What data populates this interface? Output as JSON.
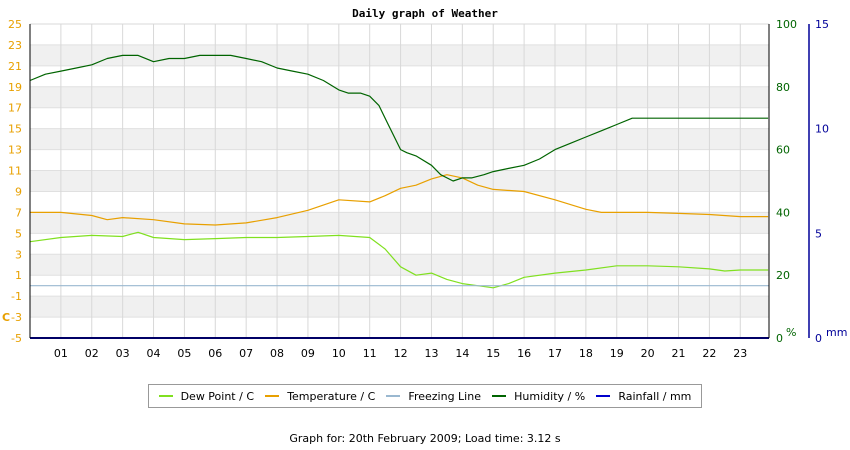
{
  "chart_data": {
    "type": "line",
    "title": "Daily graph of Weather",
    "x_tick_labels": [
      "01",
      "02",
      "03",
      "04",
      "05",
      "06",
      "07",
      "08",
      "09",
      "10",
      "11",
      "12",
      "13",
      "14",
      "15",
      "16",
      "17",
      "18",
      "19",
      "20",
      "21",
      "22",
      "23"
    ],
    "xlim": [
      0,
      23.93
    ],
    "left_axis": {
      "unit_label": "C",
      "ylim": [
        -5,
        25
      ],
      "ticks": [
        -5,
        -3,
        -1,
        1,
        3,
        5,
        7,
        9,
        11,
        13,
        15,
        17,
        19,
        21,
        23,
        25
      ],
      "color": "#E8A000"
    },
    "right_axis_1": {
      "unit_label": "%",
      "ylim": [
        0,
        100
      ],
      "ticks": [
        0,
        20,
        40,
        60,
        80,
        100
      ],
      "color": "#006400"
    },
    "right_axis_2": {
      "unit_label": "mm",
      "ylim": [
        0,
        15
      ],
      "ticks": [
        0,
        5,
        10,
        15
      ],
      "color": "#000099"
    },
    "grid": true,
    "legend_placement": "bottom",
    "series": [
      {
        "name": "Dew Point / C",
        "axis": "left",
        "color": "#80E020",
        "x": [
          0,
          1,
          2,
          3,
          3.5,
          4,
          5,
          6,
          7,
          8,
          9,
          10,
          11,
          11.5,
          12,
          12.5,
          13,
          13.5,
          14,
          14.5,
          15,
          15.5,
          16,
          17,
          18,
          19,
          20,
          21,
          22,
          22.5,
          23,
          23.9
        ],
        "y": [
          4.2,
          4.6,
          4.8,
          4.7,
          5.1,
          4.6,
          4.4,
          4.5,
          4.6,
          4.6,
          4.7,
          4.8,
          4.6,
          3.5,
          1.8,
          1.0,
          1.2,
          0.6,
          0.2,
          0.0,
          -0.2,
          0.2,
          0.8,
          1.2,
          1.5,
          1.9,
          1.9,
          1.8,
          1.6,
          1.4,
          1.5,
          1.5
        ]
      },
      {
        "name": "Temperature / C",
        "axis": "left",
        "color": "#E8A000",
        "x": [
          0,
          1,
          2,
          2.5,
          3,
          4,
          5,
          6,
          7,
          8,
          9,
          10,
          11,
          11.5,
          12,
          12.5,
          13,
          13.5,
          14,
          14.5,
          15,
          16,
          17,
          18,
          18.5,
          19,
          20,
          21,
          22,
          23,
          23.9
        ],
        "y": [
          7.0,
          7.0,
          6.7,
          6.3,
          6.5,
          6.3,
          5.9,
          5.8,
          6.0,
          6.5,
          7.2,
          8.2,
          8.0,
          8.6,
          9.3,
          9.6,
          10.2,
          10.6,
          10.3,
          9.6,
          9.2,
          9.0,
          8.2,
          7.3,
          7.0,
          7.0,
          7.0,
          6.9,
          6.8,
          6.6,
          6.6
        ]
      },
      {
        "name": "Freezing Line",
        "axis": "left",
        "color": "#9AB8D0",
        "x": [
          0,
          23.93
        ],
        "y": [
          0,
          0
        ]
      },
      {
        "name": "Humidity / %",
        "axis": "right_1",
        "color": "#006400",
        "x": [
          0,
          0.5,
          1,
          1.5,
          2,
          2.5,
          3,
          3.5,
          4,
          4.5,
          5,
          5.5,
          6,
          6.5,
          7,
          7.5,
          8,
          8.5,
          9,
          9.5,
          10,
          10.3,
          10.7,
          11,
          11.3,
          11.6,
          12,
          12.2,
          12.5,
          13,
          13.3,
          13.7,
          14,
          14.3,
          14.7,
          15,
          15.5,
          16,
          16.5,
          17,
          17.5,
          18,
          18.5,
          19,
          19.5,
          20,
          20.5,
          21,
          21.5,
          22,
          22.5,
          23,
          23.5,
          23.9
        ],
        "y": [
          82,
          84,
          85,
          86,
          87,
          89,
          90,
          90,
          88,
          89,
          89,
          90,
          90,
          90,
          89,
          88,
          86,
          85,
          84,
          82,
          79,
          78,
          78,
          77,
          74,
          68,
          60,
          59,
          58,
          55,
          52,
          50,
          51,
          51,
          52,
          53,
          54,
          55,
          57,
          60,
          62,
          64,
          66,
          68,
          70,
          70,
          70,
          70,
          70,
          70,
          70,
          70,
          70,
          70
        ]
      },
      {
        "name": "Rainfall / mm",
        "axis": "right_2",
        "color": "#0000CC",
        "x": [
          0,
          23.93
        ],
        "y": [
          0,
          0
        ]
      }
    ]
  },
  "footer": "Graph for: 20th February 2009; Load time: 3.12 s"
}
